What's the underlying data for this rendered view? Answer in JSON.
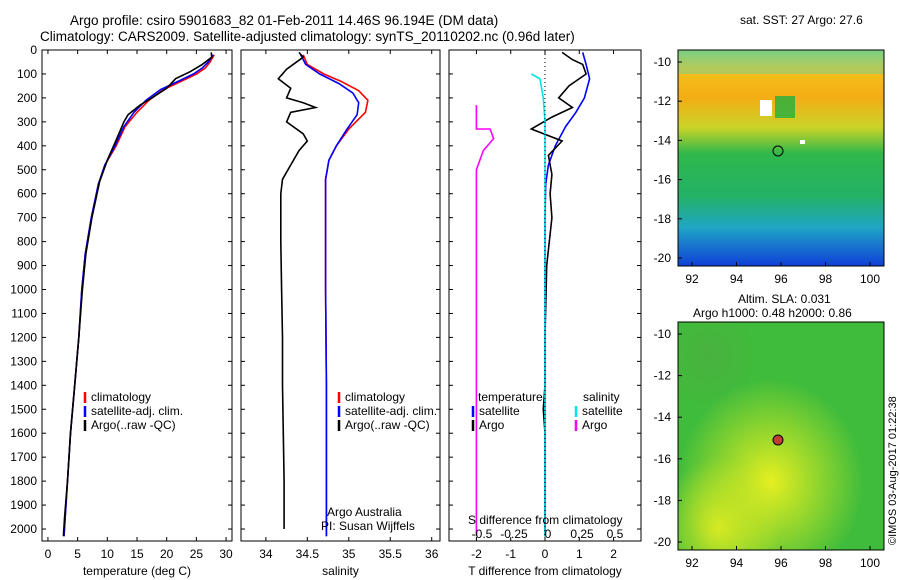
{
  "header": {
    "title_line1": "Argo profile: csiro 5901683_82 01-Feb-2011 14.46S 96.194E (DM data)",
    "title_line2": "Climatology: CARS2009. Satellite-adjusted climatology: synTS_20110202.nc (0.96d later)"
  },
  "colors": {
    "climatology": "#ff0000",
    "satellite": "#0000ff",
    "argo": "#000000",
    "salinity_sat": "#00e5e5",
    "salinity_argo": "#ff00ff"
  },
  "chart_data": [
    {
      "type": "line",
      "xlabel": "temperature (deg C)",
      "ylabel": "",
      "xlim": [
        -1,
        31
      ],
      "ylim": [
        2050,
        0
      ],
      "xticks": [
        0,
        5,
        10,
        15,
        20,
        25,
        30
      ],
      "yticks": [
        0,
        100,
        200,
        300,
        400,
        500,
        600,
        700,
        800,
        900,
        1000,
        1100,
        1200,
        1300,
        1400,
        1500,
        1600,
        1700,
        1800,
        1900,
        2000
      ],
      "legend": [
        "climatology",
        "satellite-adj. clim.",
        "Argo(..raw -QC)"
      ],
      "series": [
        {
          "name": "climatology",
          "color": "#ff0000",
          "points": [
            [
              28,
              20
            ],
            [
              27.3,
              50
            ],
            [
              26.5,
              75
            ],
            [
              25,
              100
            ],
            [
              22.5,
              130
            ],
            [
              19.5,
              165
            ],
            [
              17,
              210
            ],
            [
              15,
              260
            ],
            [
              13,
              320
            ],
            [
              11.5,
              400
            ],
            [
              9.6,
              480
            ],
            [
              8.5,
              560
            ],
            [
              7.3,
              700
            ],
            [
              6.3,
              850
            ],
            [
              5.7,
              1000
            ],
            [
              5.2,
              1200
            ],
            [
              4.5,
              1400
            ],
            [
              3.8,
              1600
            ],
            [
              3.3,
              1800
            ],
            [
              2.9,
              1950
            ],
            [
              2.7,
              2030
            ]
          ]
        },
        {
          "name": "satellite-adj. clim.",
          "color": "#0000ff",
          "points": [
            [
              27.8,
              20
            ],
            [
              27,
              50
            ],
            [
              26,
              75
            ],
            [
              24.5,
              100
            ],
            [
              22,
              130
            ],
            [
              19,
              165
            ],
            [
              16.5,
              210
            ],
            [
              14.5,
              260
            ],
            [
              12.8,
              320
            ],
            [
              11.3,
              400
            ],
            [
              9.6,
              480
            ],
            [
              8.5,
              560
            ],
            [
              7.3,
              700
            ],
            [
              6.3,
              850
            ],
            [
              5.7,
              1000
            ],
            [
              5.2,
              1200
            ],
            [
              4.5,
              1400
            ],
            [
              3.8,
              1600
            ],
            [
              3.3,
              1800
            ],
            [
              2.9,
              1950
            ],
            [
              2.7,
              2030
            ]
          ]
        },
        {
          "name": "Argo(..raw -QC)",
          "color": "#000000",
          "points": [
            [
              27.5,
              10
            ],
            [
              27.6,
              30
            ],
            [
              26,
              60
            ],
            [
              24,
              90
            ],
            [
              21.5,
              120
            ],
            [
              20,
              160
            ],
            [
              17.5,
              200
            ],
            [
              15.5,
              230
            ],
            [
              13.5,
              270
            ],
            [
              12.8,
              300
            ],
            [
              11.6,
              370
            ],
            [
              10,
              460
            ],
            [
              8.7,
              550
            ],
            [
              7.4,
              700
            ],
            [
              6.4,
              850
            ],
            [
              5.8,
              1000
            ],
            [
              5.2,
              1200
            ],
            [
              4.5,
              1400
            ],
            [
              3.8,
              1600
            ],
            [
              3.3,
              1800
            ],
            [
              2.8,
              1950
            ],
            [
              2.6,
              2030
            ]
          ]
        }
      ]
    },
    {
      "type": "line",
      "xlabel": "salinity",
      "ylabel": "",
      "xlim": [
        33.7,
        36.1
      ],
      "ylim": [
        2050,
        0
      ],
      "xticks": [
        34,
        34.5,
        35,
        35.5,
        36
      ],
      "legend": [
        "climatology",
        "satellite-adj. clim.",
        "Argo(..raw -QC)"
      ],
      "annotations": [
        "Argo Australia",
        "PI: Susan Wijffels"
      ],
      "series": [
        {
          "name": "climatology",
          "color": "#ff0000",
          "points": [
            [
              34.45,
              20
            ],
            [
              34.5,
              60
            ],
            [
              34.7,
              100
            ],
            [
              34.9,
              130
            ],
            [
              35.12,
              170
            ],
            [
              35.23,
              210
            ],
            [
              35.2,
              260
            ],
            [
              35.0,
              330
            ],
            [
              34.85,
              400
            ],
            [
              34.76,
              460
            ],
            [
              34.72,
              540
            ],
            [
              34.72,
              700
            ],
            [
              34.72,
              1000
            ],
            [
              34.73,
              1400
            ],
            [
              34.73,
              1800
            ],
            [
              34.73,
              2030
            ]
          ]
        },
        {
          "name": "satellite-adj. clim.",
          "color": "#0000ff",
          "points": [
            [
              34.42,
              20
            ],
            [
              34.48,
              60
            ],
            [
              34.65,
              100
            ],
            [
              34.88,
              140
            ],
            [
              35.05,
              180
            ],
            [
              35.12,
              220
            ],
            [
              35.1,
              270
            ],
            [
              34.98,
              330
            ],
            [
              34.85,
              400
            ],
            [
              34.76,
              460
            ],
            [
              34.72,
              540
            ],
            [
              34.72,
              700
            ],
            [
              34.72,
              1000
            ],
            [
              34.73,
              1400
            ],
            [
              34.73,
              1800
            ],
            [
              34.73,
              2030
            ]
          ]
        },
        {
          "name": "Argo(..raw -QC)",
          "color": "#000000",
          "points": [
            [
              34.4,
              10
            ],
            [
              34.45,
              30
            ],
            [
              34.25,
              80
            ],
            [
              34.15,
              120
            ],
            [
              34.3,
              160
            ],
            [
              34.25,
              200
            ],
            [
              34.45,
              220
            ],
            [
              34.6,
              240
            ],
            [
              34.3,
              260
            ],
            [
              34.25,
              300
            ],
            [
              34.45,
              350
            ],
            [
              34.5,
              380
            ],
            [
              34.4,
              420
            ],
            [
              34.3,
              480
            ],
            [
              34.2,
              540
            ],
            [
              34.18,
              600
            ],
            [
              34.18,
              800
            ],
            [
              34.19,
              1000
            ],
            [
              34.2,
              1200
            ],
            [
              34.2,
              1400
            ],
            [
              34.21,
              1600
            ],
            [
              34.22,
              1800
            ],
            [
              34.22,
              2000
            ]
          ]
        }
      ]
    },
    {
      "type": "line",
      "xlabel": "T difference from climatology",
      "xlabel2": "S difference from climatology",
      "xlim": [
        -2.8,
        2.8
      ],
      "ylim": [
        2050,
        0
      ],
      "xticks": [
        -2,
        -1,
        0,
        1,
        2
      ],
      "xticks2": [
        "-0.5",
        "-0.25",
        "0",
        "0.25",
        "0.5"
      ],
      "legend_titles": [
        "temperature",
        "salinity"
      ],
      "legend": [
        "satellite",
        "Argo",
        "satellite",
        "Argo"
      ],
      "series": [
        {
          "name": "temperature satellite",
          "color": "#0000ff",
          "points": [
            [
              1.1,
              10
            ],
            [
              1.2,
              60
            ],
            [
              1.3,
              120
            ],
            [
              1.15,
              200
            ],
            [
              0.9,
              260
            ],
            [
              0.6,
              320
            ],
            [
              0.3,
              400
            ],
            [
              0.1,
              480
            ],
            [
              0.02,
              560
            ],
            [
              0.0,
              700
            ],
            [
              0.0,
              1000
            ],
            [
              0.0,
              1400
            ],
            [
              0.0,
              1800
            ],
            [
              0.0,
              2030
            ]
          ]
        },
        {
          "name": "temperature Argo",
          "color": "#000000",
          "points": [
            [
              0.5,
              10
            ],
            [
              0.8,
              40
            ],
            [
              1.1,
              60
            ],
            [
              1.2,
              100
            ],
            [
              0.7,
              150
            ],
            [
              0.4,
              200
            ],
            [
              0.8,
              240
            ],
            [
              0.2,
              280
            ],
            [
              -0.4,
              330
            ],
            [
              0.5,
              380
            ],
            [
              0.1,
              440
            ],
            [
              0.2,
              520
            ],
            [
              0.15,
              600
            ],
            [
              0.2,
              700
            ],
            [
              0.05,
              900
            ],
            [
              0.0,
              1200
            ],
            [
              0.0,
              1400
            ],
            [
              -0.05,
              1500
            ],
            [
              0.0,
              1600
            ],
            [
              0.0,
              2030
            ]
          ]
        },
        {
          "name": "salinity satellite",
          "color": "#00e5e5",
          "points": [
            [
              -0.4,
              100
            ],
            [
              -0.15,
              120
            ],
            [
              -0.05,
              200
            ],
            [
              0.0,
              300
            ],
            [
              0.0,
              400
            ],
            [
              0.0,
              600
            ],
            [
              0.0,
              1000
            ],
            [
              0.0,
              1500
            ],
            [
              0.0,
              2030
            ]
          ]
        },
        {
          "name": "salinity Argo",
          "color": "#ff00ff",
          "points": [
            [
              -2.0,
              230
            ],
            [
              -2.0,
              330
            ],
            [
              -1.6,
              330
            ],
            [
              -1.5,
              370
            ],
            [
              -1.8,
              420
            ],
            [
              -2.0,
              500
            ],
            [
              -2.0,
              1000
            ],
            [
              -2.0,
              1500
            ],
            [
              -2.0,
              2030
            ]
          ]
        }
      ]
    }
  ],
  "maps": {
    "sst": {
      "title": "sat. SST: 27 Argo: 27.6",
      "xticks": [
        "92",
        "94",
        "96",
        "98",
        "100"
      ],
      "yticks": [
        "-10",
        "-12",
        "-14",
        "-16",
        "-18",
        "-20"
      ]
    },
    "sla": {
      "title_line1": "Altim. SLA: 0.031",
      "title_line2": "Argo h1000: 0.48 h2000: 0.86",
      "xticks": [
        "92",
        "94",
        "96",
        "98",
        "100"
      ],
      "yticks": [
        "-10",
        "-12",
        "-14",
        "-16",
        "-18",
        "-20"
      ]
    }
  },
  "footer": {
    "credit": "©IMOS 03-Aug-2017 01:22:38"
  }
}
